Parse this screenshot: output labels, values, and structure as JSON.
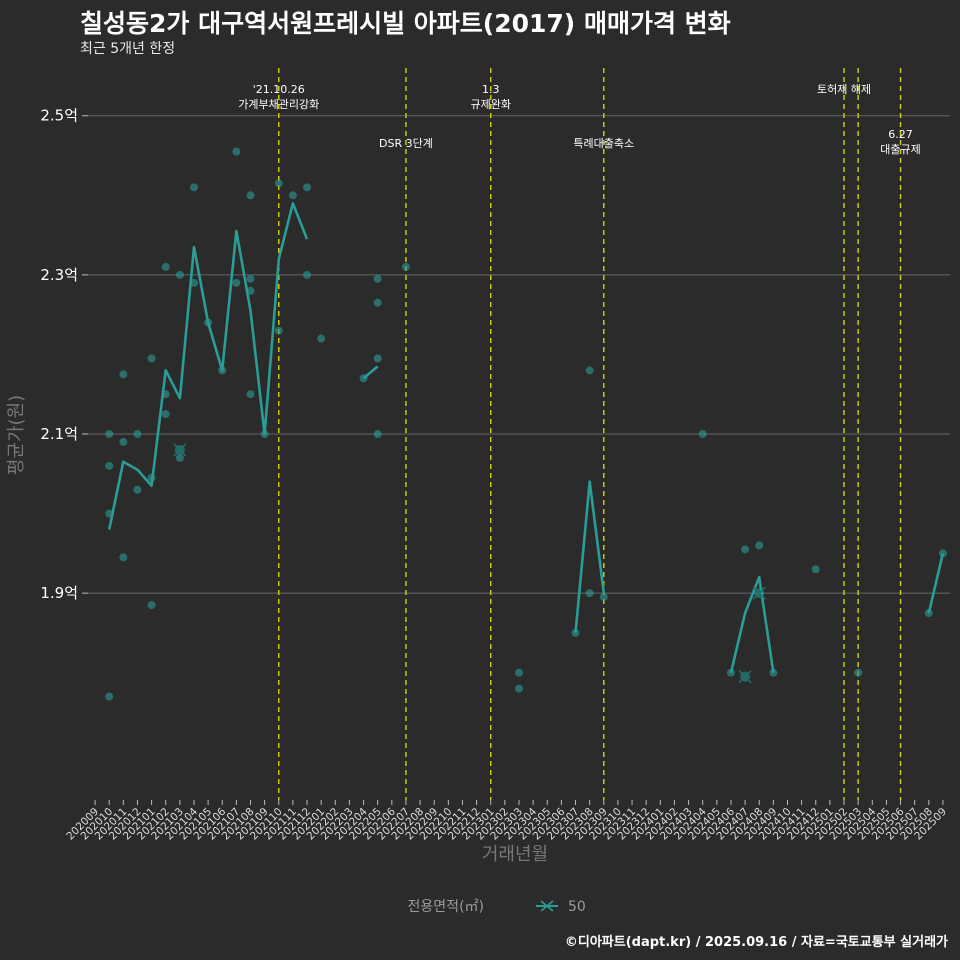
{
  "title": "칠성동2가 대구역서원프레시빌 아파트(2017) 매매가격 변화",
  "subtitle": "최근 5개년 한정",
  "caption": "©디아파트(dapt.kr) / 2025.09.16 / 자료=국토교통부 실거래가",
  "colors": {
    "background": "#2b2b2b",
    "series": "#2a9d96",
    "grid": "#666666",
    "event_line": "#d4d400"
  },
  "chart_data": {
    "type": "line",
    "xlabel": "거래년월",
    "ylabel": "평균가(원)",
    "ylim": [
      1.64,
      2.56
    ],
    "y_ticks": [
      {
        "value": 1.9,
        "label": "1.9억"
      },
      {
        "value": 2.1,
        "label": "2.1억"
      },
      {
        "value": 2.3,
        "label": "2.3억"
      },
      {
        "value": 2.5,
        "label": "2.5억"
      }
    ],
    "x_ticks": [
      "202009",
      "202010",
      "202011",
      "202012",
      "202101",
      "202102",
      "202103",
      "202104",
      "202105",
      "202106",
      "202107",
      "202108",
      "202109",
      "202110",
      "202111",
      "202112",
      "202201",
      "202202",
      "202203",
      "202204",
      "202205",
      "202206",
      "202207",
      "202208",
      "202209",
      "202210",
      "202211",
      "202212",
      "202301",
      "202302",
      "202303",
      "202304",
      "202305",
      "202306",
      "202307",
      "202308",
      "202309",
      "202310",
      "202311",
      "202312",
      "202401",
      "202402",
      "202403",
      "202404",
      "202405",
      "202406",
      "202407",
      "202408",
      "202409",
      "202410",
      "202411",
      "202412",
      "202501",
      "202502",
      "202503",
      "202504",
      "202505",
      "202506",
      "202507",
      "202508",
      "202509"
    ],
    "legend": {
      "title": "전용면적(㎡)",
      "label": "50",
      "position": "bottom"
    },
    "events": [
      {
        "month": "202110",
        "label": [
          "'21.10.26",
          "가계부채관리강화"
        ],
        "level": 1
      },
      {
        "month": "202207",
        "label": [
          "DSR 3단계"
        ],
        "level": 2
      },
      {
        "month": "202301",
        "label": [
          "1.3",
          "규제완화"
        ],
        "level": 1
      },
      {
        "month": "202309",
        "label": [
          "특례대출축소"
        ],
        "level": 2
      },
      {
        "month": "202502",
        "label": [
          "토허제 해제"
        ],
        "level": 1
      },
      {
        "month": "202503",
        "label": [],
        "level": 1
      },
      {
        "month": "202506",
        "label": [
          "6.27",
          "대출규제"
        ],
        "level": 3
      }
    ],
    "line_segments": [
      [
        [
          "202010",
          1.98
        ],
        [
          "202011",
          2.065
        ],
        [
          "202012",
          2.055
        ],
        [
          "202101",
          2.035
        ],
        [
          "202102",
          2.18
        ],
        [
          "202103",
          2.145
        ],
        [
          "202104",
          2.335
        ],
        [
          "202105",
          2.24
        ],
        [
          "202106",
          2.18
        ],
        [
          "202107",
          2.355
        ],
        [
          "202108",
          2.255
        ],
        [
          "202109",
          2.1
        ],
        [
          "202110",
          2.32
        ],
        [
          "202111",
          2.39
        ],
        [
          "202112",
          2.345
        ]
      ],
      [
        [
          "202204",
          2.17
        ],
        [
          "202205",
          2.185
        ]
      ],
      [
        [
          "202307",
          1.85
        ],
        [
          "202308",
          2.04
        ],
        [
          "202309",
          1.9
        ]
      ],
      [
        [
          "202406",
          1.8
        ],
        [
          "202407",
          1.875
        ],
        [
          "202408",
          1.92
        ],
        [
          "202409",
          1.8
        ]
      ],
      [
        [
          "202508",
          1.875
        ],
        [
          "202509",
          1.95
        ]
      ]
    ],
    "points": [
      [
        "202010",
        2.1
      ],
      [
        "202010",
        2.06
      ],
      [
        "202010",
        2.0
      ],
      [
        "202010",
        1.77
      ],
      [
        "202011",
        2.175
      ],
      [
        "202011",
        2.09
      ],
      [
        "202011",
        1.945
      ],
      [
        "202012",
        2.1
      ],
      [
        "202012",
        2.03
      ],
      [
        "202101",
        2.195
      ],
      [
        "202101",
        2.045
      ],
      [
        "202101",
        1.885
      ],
      [
        "202102",
        2.31
      ],
      [
        "202102",
        2.15
      ],
      [
        "202102",
        2.125
      ],
      [
        "202103",
        2.3
      ],
      [
        "202103",
        2.07
      ],
      [
        "202104",
        2.41
      ],
      [
        "202104",
        2.29
      ],
      [
        "202105",
        2.24
      ],
      [
        "202106",
        2.18
      ],
      [
        "202107",
        2.455
      ],
      [
        "202107",
        2.29
      ],
      [
        "202108",
        2.4
      ],
      [
        "202108",
        2.295
      ],
      [
        "202108",
        2.28
      ],
      [
        "202108",
        2.15
      ],
      [
        "202109",
        2.1
      ],
      [
        "202110",
        2.415
      ],
      [
        "202110",
        2.23
      ],
      [
        "202111",
        2.4
      ],
      [
        "202112",
        2.41
      ],
      [
        "202112",
        2.3
      ],
      [
        "202201",
        2.22
      ],
      [
        "202204",
        2.17
      ],
      [
        "202205",
        2.295
      ],
      [
        "202205",
        2.265
      ],
      [
        "202205",
        2.195
      ],
      [
        "202205",
        2.1
      ],
      [
        "202207",
        2.31
      ],
      [
        "202303",
        1.8
      ],
      [
        "202303",
        1.78
      ],
      [
        "202307",
        1.85
      ],
      [
        "202308",
        2.18
      ],
      [
        "202308",
        1.9
      ],
      [
        "202309",
        1.895
      ],
      [
        "202404",
        2.1
      ],
      [
        "202406",
        1.8
      ],
      [
        "202407",
        1.955
      ],
      [
        "202408",
        1.96
      ],
      [
        "202409",
        1.8
      ],
      [
        "202412",
        1.93
      ],
      [
        "202503",
        1.8
      ],
      [
        "202508",
        1.875
      ],
      [
        "202509",
        1.95
      ]
    ],
    "cross_markers": [
      [
        "202103",
        2.08
      ],
      [
        "202407",
        1.795
      ],
      [
        "202408",
        1.9
      ]
    ]
  }
}
